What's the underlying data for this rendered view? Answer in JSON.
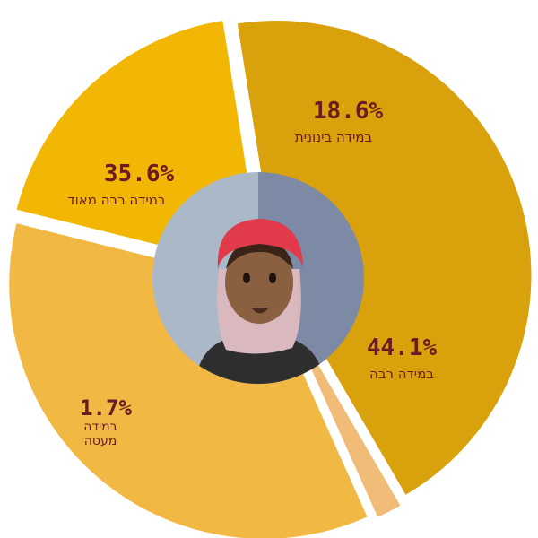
{
  "chart_data": {
    "type": "pie",
    "slices": [
      {
        "label": "במידה בינונית",
        "value": 18.6,
        "value_label": "18.6%",
        "color": "#f2b705"
      },
      {
        "label": "במידה רבה",
        "value": 44.1,
        "value_label": "44.1%",
        "color": "#d9a10c"
      },
      {
        "label": "במידה מעטה",
        "label_lines": [
          "במידה",
          "מעטה"
        ],
        "value": 1.7,
        "value_label": "1.7%",
        "color": "#f0bc78"
      },
      {
        "label": "במידה רבה מאוד",
        "value": 35.6,
        "value_label": "35.6%",
        "color": "#f1b843"
      }
    ]
  },
  "center_illustration": {
    "icon": "woman-in-headscarf-icon",
    "colors": {
      "bg_left": "#aab8c8",
      "bg_right": "#7d8aa6",
      "scarf": "#e03a4b",
      "shawl": "#d9b9be",
      "skin": "#8a6040",
      "shirt": "#2e2e2e"
    }
  }
}
